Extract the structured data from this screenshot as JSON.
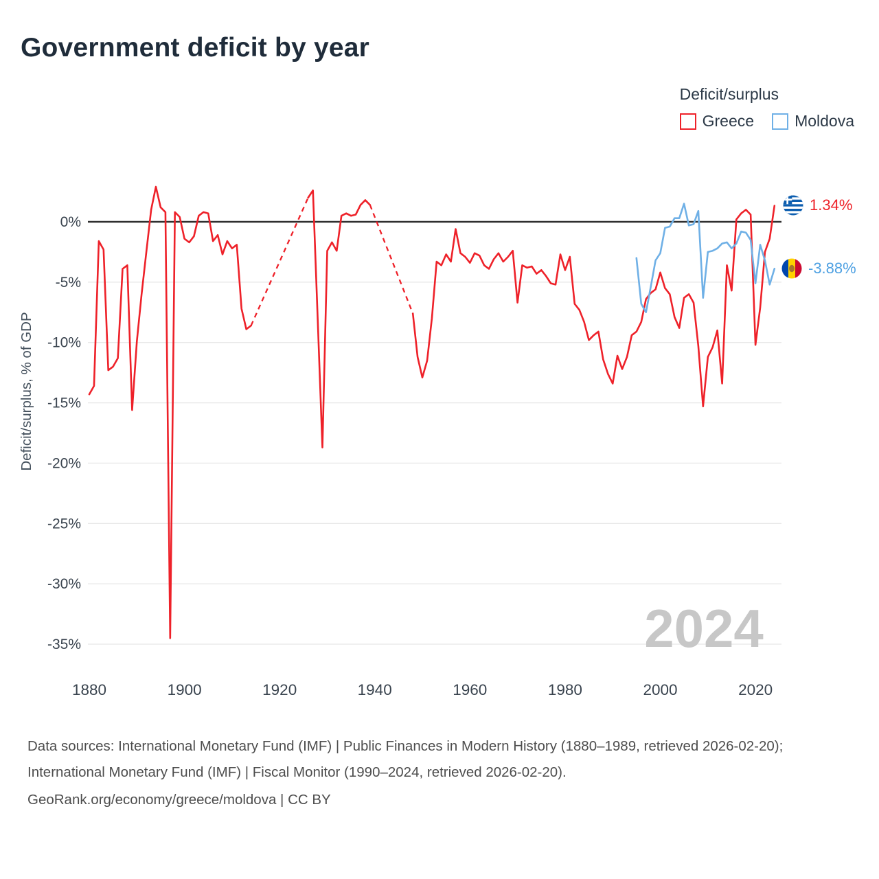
{
  "title": "Government deficit by year",
  "legend": {
    "title": "Deficit/surplus"
  },
  "end_labels": {
    "greece": "1.34%",
    "moldova": "-3.88%"
  },
  "watermark": "2024",
  "footer": {
    "sources": "Data sources: International Monetary Fund (IMF) | Public Finances in Modern History (1880–1989, retrieved 2026-02-20); International Monetary Fund (IMF) | Fiscal Monitor (1990–2024, retrieved 2026-02-20).",
    "attribution": "GeoRank.org/economy/greece/moldova | CC BY"
  },
  "colors": {
    "greece": "#ee2129",
    "moldova": "#6fb0e6",
    "zero_line": "#2f2f2f",
    "grid": "#e7e7e7",
    "title": "#1f2c3a",
    "axis_text": "#39434e",
    "watermark": "#c7c7c7"
  },
  "chart_data": {
    "type": "line",
    "title": "Government deficit by year",
    "xlabel": "",
    "ylabel": "Deficit/surplus, % of GDP",
    "xlim": [
      1878,
      2026
    ],
    "ylim": [
      -37,
      4
    ],
    "grid": true,
    "legend_position": "top-right",
    "yticks": [
      {
        "v": 0,
        "label": "0%"
      },
      {
        "v": -5,
        "label": "-5%"
      },
      {
        "v": -10,
        "label": "-10%"
      },
      {
        "v": -15,
        "label": "-15%"
      },
      {
        "v": -20,
        "label": "-20%"
      },
      {
        "v": -25,
        "label": "-25%"
      },
      {
        "v": -30,
        "label": "-30%"
      },
      {
        "v": -35,
        "label": "-35%"
      }
    ],
    "xticks": [
      {
        "v": 1880,
        "label": "1880"
      },
      {
        "v": 1900,
        "label": "1900"
      },
      {
        "v": 1920,
        "label": "1920"
      },
      {
        "v": 1940,
        "label": "1940"
      },
      {
        "v": 1960,
        "label": "1960"
      },
      {
        "v": 1980,
        "label": "1980"
      },
      {
        "v": 2000,
        "label": "2000"
      },
      {
        "v": 2020,
        "label": "2020"
      }
    ],
    "series": [
      {
        "name": "Greece",
        "color": "#ee2129",
        "end_label": "1.34%",
        "dashed_ranges": [
          [
            1914,
            1926
          ],
          [
            1939,
            1948
          ]
        ],
        "points": [
          [
            1880,
            -14.3
          ],
          [
            1881,
            -13.6
          ],
          [
            1882,
            -1.6
          ],
          [
            1883,
            -2.3
          ],
          [
            1884,
            -12.3
          ],
          [
            1885,
            -12.0
          ],
          [
            1886,
            -11.3
          ],
          [
            1887,
            -3.9
          ],
          [
            1888,
            -3.6
          ],
          [
            1889,
            -15.6
          ],
          [
            1890,
            -9.9
          ],
          [
            1891,
            -6.0
          ],
          [
            1892,
            -2.5
          ],
          [
            1893,
            1.0
          ],
          [
            1894,
            2.9
          ],
          [
            1895,
            1.2
          ],
          [
            1896,
            0.8
          ],
          [
            1897,
            -34.5
          ],
          [
            1898,
            0.8
          ],
          [
            1899,
            0.4
          ],
          [
            1900,
            -1.4
          ],
          [
            1901,
            -1.7
          ],
          [
            1902,
            -1.2
          ],
          [
            1903,
            0.5
          ],
          [
            1904,
            0.8
          ],
          [
            1905,
            0.7
          ],
          [
            1906,
            -1.6
          ],
          [
            1907,
            -1.1
          ],
          [
            1908,
            -2.7
          ],
          [
            1909,
            -1.6
          ],
          [
            1910,
            -2.2
          ],
          [
            1911,
            -1.9
          ],
          [
            1912,
            -7.2
          ],
          [
            1913,
            -8.9
          ],
          [
            1914,
            -8.6
          ],
          [
            1926,
            2.0
          ],
          [
            1927,
            2.6
          ],
          [
            1928,
            -8.0
          ],
          [
            1929,
            -18.7
          ],
          [
            1930,
            -2.4
          ],
          [
            1931,
            -1.7
          ],
          [
            1932,
            -2.4
          ],
          [
            1933,
            0.5
          ],
          [
            1934,
            0.7
          ],
          [
            1935,
            0.5
          ],
          [
            1936,
            0.6
          ],
          [
            1937,
            1.4
          ],
          [
            1938,
            1.8
          ],
          [
            1939,
            1.4
          ],
          [
            1948,
            -7.6
          ],
          [
            1949,
            -11.2
          ],
          [
            1950,
            -12.9
          ],
          [
            1951,
            -11.5
          ],
          [
            1952,
            -8.0
          ],
          [
            1953,
            -3.3
          ],
          [
            1954,
            -3.6
          ],
          [
            1955,
            -2.7
          ],
          [
            1956,
            -3.3
          ],
          [
            1957,
            -0.6
          ],
          [
            1958,
            -2.6
          ],
          [
            1959,
            -2.9
          ],
          [
            1960,
            -3.4
          ],
          [
            1961,
            -2.6
          ],
          [
            1962,
            -2.8
          ],
          [
            1963,
            -3.6
          ],
          [
            1964,
            -3.9
          ],
          [
            1965,
            -3.1
          ],
          [
            1966,
            -2.6
          ],
          [
            1967,
            -3.3
          ],
          [
            1968,
            -2.9
          ],
          [
            1969,
            -2.4
          ],
          [
            1970,
            -6.7
          ],
          [
            1971,
            -3.6
          ],
          [
            1972,
            -3.8
          ],
          [
            1973,
            -3.7
          ],
          [
            1974,
            -4.3
          ],
          [
            1975,
            -4.0
          ],
          [
            1976,
            -4.5
          ],
          [
            1977,
            -5.1
          ],
          [
            1978,
            -5.2
          ],
          [
            1979,
            -2.7
          ],
          [
            1980,
            -4.0
          ],
          [
            1981,
            -2.9
          ],
          [
            1982,
            -6.8
          ],
          [
            1983,
            -7.3
          ],
          [
            1984,
            -8.3
          ],
          [
            1985,
            -9.8
          ],
          [
            1986,
            -9.4
          ],
          [
            1987,
            -9.1
          ],
          [
            1988,
            -11.4
          ],
          [
            1989,
            -12.6
          ],
          [
            1990,
            -13.4
          ],
          [
            1991,
            -11.1
          ],
          [
            1992,
            -12.2
          ],
          [
            1993,
            -11.2
          ],
          [
            1994,
            -9.4
          ],
          [
            1995,
            -9.1
          ],
          [
            1996,
            -8.3
          ],
          [
            1997,
            -6.4
          ],
          [
            1998,
            -5.9
          ],
          [
            1999,
            -5.6
          ],
          [
            2000,
            -4.2
          ],
          [
            2001,
            -5.5
          ],
          [
            2002,
            -6.0
          ],
          [
            2003,
            -7.9
          ],
          [
            2004,
            -8.8
          ],
          [
            2005,
            -6.3
          ],
          [
            2006,
            -6.0
          ],
          [
            2007,
            -6.7
          ],
          [
            2008,
            -10.3
          ],
          [
            2009,
            -15.3
          ],
          [
            2010,
            -11.2
          ],
          [
            2011,
            -10.4
          ],
          [
            2012,
            -9.0
          ],
          [
            2013,
            -13.4
          ],
          [
            2014,
            -3.6
          ],
          [
            2015,
            -5.7
          ],
          [
            2016,
            0.2
          ],
          [
            2017,
            0.7
          ],
          [
            2018,
            1.0
          ],
          [
            2019,
            0.6
          ],
          [
            2020,
            -10.2
          ],
          [
            2021,
            -7.1
          ],
          [
            2022,
            -2.5
          ],
          [
            2023,
            -1.4
          ],
          [
            2024,
            1.34
          ]
        ]
      },
      {
        "name": "Moldova",
        "color": "#6fb0e6",
        "end_label": "-3.88%",
        "points": [
          [
            1995,
            -3.0
          ],
          [
            1996,
            -6.8
          ],
          [
            1997,
            -7.5
          ],
          [
            1998,
            -5.4
          ],
          [
            1999,
            -3.2
          ],
          [
            2000,
            -2.6
          ],
          [
            2001,
            -0.5
          ],
          [
            2002,
            -0.4
          ],
          [
            2003,
            0.3
          ],
          [
            2004,
            0.3
          ],
          [
            2005,
            1.5
          ],
          [
            2006,
            -0.3
          ],
          [
            2007,
            -0.2
          ],
          [
            2008,
            0.9
          ],
          [
            2009,
            -6.3
          ],
          [
            2010,
            -2.5
          ],
          [
            2011,
            -2.4
          ],
          [
            2012,
            -2.2
          ],
          [
            2013,
            -1.8
          ],
          [
            2014,
            -1.7
          ],
          [
            2015,
            -2.2
          ],
          [
            2016,
            -1.8
          ],
          [
            2017,
            -0.8
          ],
          [
            2018,
            -0.9
          ],
          [
            2019,
            -1.5
          ],
          [
            2020,
            -5.1
          ],
          [
            2021,
            -1.9
          ],
          [
            2022,
            -3.2
          ],
          [
            2023,
            -5.2
          ],
          [
            2024,
            -3.88
          ]
        ]
      }
    ]
  }
}
